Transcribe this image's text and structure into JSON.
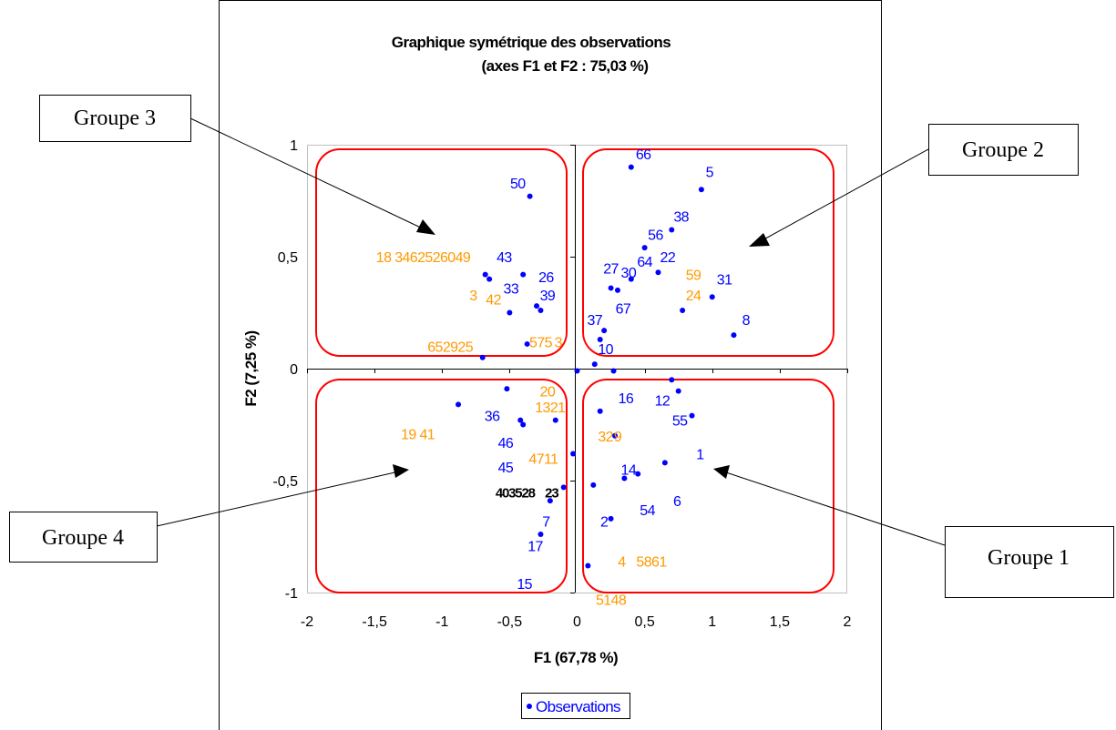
{
  "chart_data": {
    "type": "scatter",
    "title": "Graphique symétrique des observations",
    "subtitle": "(axes F1 et F2 : 75,03 %)",
    "xlabel": "F1 (67,78 %)",
    "ylabel": "F2 (7,25 %)",
    "xlim": [
      -2,
      2
    ],
    "ylim": [
      -1,
      1
    ],
    "x_ticks": [
      "-2",
      "-1,5",
      "-1",
      "-0,5",
      "0",
      "0,5",
      "1",
      "1,5",
      "2"
    ],
    "y_ticks": [
      "-1",
      "-0,5",
      "0",
      "0,5",
      "1"
    ],
    "legend": {
      "label": "Observations",
      "position": "bottom"
    },
    "colors": {
      "points": "#0000ff",
      "orange": "#ff9900",
      "black": "#000000",
      "group_box": "#ff0000"
    },
    "points": [
      {
        "x": 0.92,
        "y": 0.8
      },
      {
        "x": 1.16,
        "y": 0.15
      },
      {
        "x": 1.0,
        "y": 0.32
      },
      {
        "x": 0.78,
        "y": 0.26
      },
      {
        "x": 0.7,
        "y": 0.62
      },
      {
        "x": 0.5,
        "y": 0.54
      },
      {
        "x": 0.6,
        "y": 0.43
      },
      {
        "x": 0.4,
        "y": 0.4
      },
      {
        "x": 0.3,
        "y": 0.35
      },
      {
        "x": 0.25,
        "y": 0.36
      },
      {
        "x": 0.2,
        "y": 0.17
      },
      {
        "x": 0.17,
        "y": 0.13
      },
      {
        "x": 0.13,
        "y": 0.02
      },
      {
        "x": 0.4,
        "y": 0.9
      },
      {
        "x": -0.35,
        "y": 0.77
      },
      {
        "x": -0.65,
        "y": 0.4
      },
      {
        "x": -0.68,
        "y": 0.42
      },
      {
        "x": -0.4,
        "y": 0.42
      },
      {
        "x": -0.3,
        "y": 0.28
      },
      {
        "x": -0.27,
        "y": 0.26
      },
      {
        "x": -0.5,
        "y": 0.25
      },
      {
        "x": -0.37,
        "y": 0.11
      },
      {
        "x": -0.7,
        "y": 0.05
      },
      {
        "x": 0.0,
        "y": -0.01
      },
      {
        "x": 0.27,
        "y": -0.01
      },
      {
        "x": 0.7,
        "y": -0.05
      },
      {
        "x": 0.75,
        "y": -0.1
      },
      {
        "x": 0.85,
        "y": -0.21
      },
      {
        "x": 0.17,
        "y": -0.19
      },
      {
        "x": 0.28,
        "y": -0.3
      },
      {
        "x": 0.65,
        "y": -0.42
      },
      {
        "x": 0.45,
        "y": -0.47
      },
      {
        "x": 0.35,
        "y": -0.49
      },
      {
        "x": 0.12,
        "y": -0.52
      },
      {
        "x": 0.25,
        "y": -0.67
      },
      {
        "x": 0.08,
        "y": -0.88
      },
      {
        "x": -0.52,
        "y": -0.09
      },
      {
        "x": -0.88,
        "y": -0.16
      },
      {
        "x": -0.42,
        "y": -0.23
      },
      {
        "x": -0.4,
        "y": -0.25
      },
      {
        "x": -0.16,
        "y": -0.23
      },
      {
        "x": -0.03,
        "y": -0.38
      },
      {
        "x": -0.1,
        "y": -0.53
      },
      {
        "x": -0.2,
        "y": -0.59
      },
      {
        "x": -0.27,
        "y": -0.74
      }
    ],
    "labels": [
      {
        "text": "66",
        "x": 0.49,
        "y": 0.96,
        "color": "blue"
      },
      {
        "text": "5",
        "x": 0.98,
        "y": 0.88,
        "color": "blue"
      },
      {
        "text": "50",
        "x": -0.44,
        "y": 0.83,
        "color": "blue"
      },
      {
        "text": "38",
        "x": 0.77,
        "y": 0.68,
        "color": "blue"
      },
      {
        "text": "56",
        "x": 0.58,
        "y": 0.6,
        "color": "blue"
      },
      {
        "text": "22",
        "x": 0.67,
        "y": 0.5,
        "color": "blue"
      },
      {
        "text": "64",
        "x": 0.5,
        "y": 0.48,
        "color": "blue"
      },
      {
        "text": "27",
        "x": 0.25,
        "y": 0.45,
        "color": "blue"
      },
      {
        "text": "30",
        "x": 0.38,
        "y": 0.43,
        "color": "blue"
      },
      {
        "text": "59",
        "x": 0.86,
        "y": 0.42,
        "color": "orange"
      },
      {
        "text": "31",
        "x": 1.09,
        "y": 0.4,
        "color": "blue"
      },
      {
        "text": "24",
        "x": 0.86,
        "y": 0.33,
        "color": "orange"
      },
      {
        "text": "67",
        "x": 0.34,
        "y": 0.27,
        "color": "blue"
      },
      {
        "text": "37",
        "x": 0.13,
        "y": 0.22,
        "color": "blue"
      },
      {
        "text": "8",
        "x": 1.25,
        "y": 0.22,
        "color": "blue"
      },
      {
        "text": "10",
        "x": 0.21,
        "y": 0.09,
        "color": "blue"
      },
      {
        "text": "18 3462526049",
        "x": -1.14,
        "y": 0.5,
        "color": "orange"
      },
      {
        "text": "43",
        "x": -0.54,
        "y": 0.5,
        "color": "blue"
      },
      {
        "text": "26",
        "x": -0.23,
        "y": 0.41,
        "color": "blue"
      },
      {
        "text": "33",
        "x": -0.49,
        "y": 0.36,
        "color": "blue"
      },
      {
        "text": "39",
        "x": -0.22,
        "y": 0.33,
        "color": "blue"
      },
      {
        "text": "3",
        "x": -0.77,
        "y": 0.33,
        "color": "orange"
      },
      {
        "text": "42",
        "x": -0.62,
        "y": 0.31,
        "color": "orange"
      },
      {
        "text": "575",
        "x": -0.27,
        "y": 0.12,
        "color": "orange"
      },
      {
        "text": "3",
        "x": -0.14,
        "y": 0.12,
        "color": "orange"
      },
      {
        "text": "652925",
        "x": -0.94,
        "y": 0.1,
        "color": "orange"
      },
      {
        "text": "20",
        "x": -0.22,
        "y": -0.1,
        "color": "orange"
      },
      {
        "text": "1321",
        "x": -0.2,
        "y": -0.17,
        "color": "orange"
      },
      {
        "text": "16",
        "x": 0.36,
        "y": -0.13,
        "color": "blue"
      },
      {
        "text": "12",
        "x": 0.63,
        "y": -0.14,
        "color": "blue"
      },
      {
        "text": "55",
        "x": 0.76,
        "y": -0.23,
        "color": "blue"
      },
      {
        "text": "1",
        "x": 0.91,
        "y": -0.38,
        "color": "blue"
      },
      {
        "text": "32",
        "x": 0.21,
        "y": -0.3,
        "color": "orange"
      },
      {
        "text": "9",
        "x": 0.3,
        "y": -0.3,
        "color": "orange"
      },
      {
        "text": "36",
        "x": -0.63,
        "y": -0.21,
        "color": "blue"
      },
      {
        "text": "19 41",
        "x": -1.18,
        "y": -0.29,
        "color": "orange"
      },
      {
        "text": "46",
        "x": -0.53,
        "y": -0.33,
        "color": "blue"
      },
      {
        "text": "4711",
        "x": -0.25,
        "y": -0.4,
        "color": "orange"
      },
      {
        "text": "45",
        "x": -0.53,
        "y": -0.44,
        "color": "blue"
      },
      {
        "text": "14",
        "x": 0.38,
        "y": -0.45,
        "color": "blue"
      },
      {
        "text": "403528",
        "x": -0.46,
        "y": -0.55,
        "color": "black"
      },
      {
        "text": "23",
        "x": -0.19,
        "y": -0.55,
        "color": "black"
      },
      {
        "text": "6",
        "x": 0.74,
        "y": -0.59,
        "color": "blue"
      },
      {
        "text": "54",
        "x": 0.52,
        "y": -0.63,
        "color": "blue"
      },
      {
        "text": "2",
        "x": 0.2,
        "y": -0.68,
        "color": "blue"
      },
      {
        "text": "7",
        "x": -0.23,
        "y": -0.68,
        "color": "blue"
      },
      {
        "text": "17",
        "x": -0.31,
        "y": -0.79,
        "color": "blue"
      },
      {
        "text": "4",
        "x": 0.33,
        "y": -0.86,
        "color": "orange"
      },
      {
        "text": "5861",
        "x": 0.55,
        "y": -0.86,
        "color": "orange"
      },
      {
        "text": "15",
        "x": -0.39,
        "y": -0.96,
        "color": "blue"
      },
      {
        "text": "5148",
        "x": 0.25,
        "y": -1.03,
        "color": "orange"
      }
    ],
    "annotations": [
      {
        "text": "Groupe 3",
        "target": "top-left quadrant"
      },
      {
        "text": "Groupe 2",
        "target": "top-right quadrant"
      },
      {
        "text": "Groupe 4",
        "target": "bottom-left quadrant"
      },
      {
        "text": "Groupe 1",
        "target": "bottom-right quadrant"
      }
    ]
  }
}
